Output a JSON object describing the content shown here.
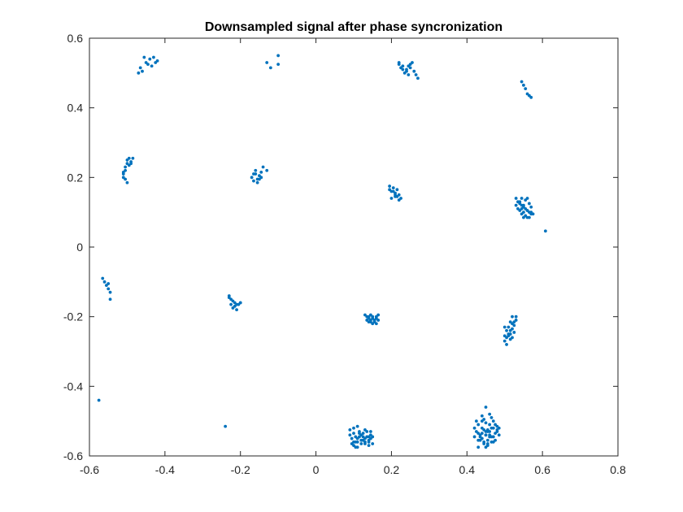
{
  "chart_data": {
    "type": "scatter",
    "title": "Downsampled signal after phase syncronization",
    "xlabel": "",
    "ylabel": "",
    "xlim": [
      -0.6,
      0.8
    ],
    "ylim": [
      -0.6,
      0.6
    ],
    "xticks": [
      -0.6,
      -0.4,
      -0.2,
      0,
      0.2,
      0.4,
      0.6,
      0.8
    ],
    "xtick_labels": [
      "-0.6",
      "-0.4",
      "-0.2",
      "0",
      "0.2",
      "0.4",
      "0.6",
      "0.8"
    ],
    "yticks": [
      -0.6,
      -0.4,
      -0.2,
      0,
      0.2,
      0.4,
      0.6
    ],
    "ytick_labels": [
      "-0.6",
      "-0.4",
      "-0.2",
      "0",
      "0.2",
      "0.4",
      "0.6"
    ],
    "grid": false,
    "legend": "none",
    "marker_color": "#0072BD",
    "series": [
      {
        "x": [
          -0.47,
          -0.455,
          -0.44,
          -0.425,
          -0.465,
          -0.45,
          -0.435,
          -0.42,
          -0.46,
          -0.445,
          -0.43,
          -0.13,
          -0.12,
          -0.1,
          -0.1,
          0.22,
          0.23,
          0.24,
          0.25,
          0.26,
          0.225,
          0.235,
          0.245,
          0.255,
          0.265,
          0.23,
          0.24,
          0.25,
          0.27,
          0.22,
          0.245,
          0.545,
          0.55,
          0.555,
          0.56,
          0.565,
          0.57,
          -0.51,
          -0.505,
          -0.5,
          -0.495,
          -0.49,
          -0.51,
          -0.505,
          -0.5,
          -0.495,
          -0.485,
          -0.51,
          -0.505,
          -0.5,
          -0.49,
          -0.17,
          -0.165,
          -0.16,
          -0.155,
          -0.15,
          -0.145,
          -0.14,
          -0.165,
          -0.155,
          -0.145,
          -0.16,
          -0.15,
          -0.13,
          0.195,
          0.2,
          0.205,
          0.21,
          0.215,
          0.22,
          0.2,
          0.21,
          0.22,
          0.205,
          0.215,
          0.225,
          0.195,
          0.21,
          0.53,
          0.535,
          0.54,
          0.545,
          0.55,
          0.555,
          0.56,
          0.565,
          0.57,
          0.54,
          0.545,
          0.55,
          0.555,
          0.56,
          0.565,
          0.535,
          0.545,
          0.555,
          0.565,
          0.57,
          0.545,
          0.55,
          0.56,
          0.575,
          0.53,
          0.54,
          0.55,
          0.56,
          0.57,
          0.608,
          -0.565,
          -0.56,
          -0.555,
          -0.55,
          -0.545,
          -0.545,
          -0.55,
          -0.23,
          -0.225,
          -0.22,
          -0.215,
          -0.21,
          -0.2,
          -0.225,
          -0.215,
          -0.205,
          -0.22,
          -0.21,
          -0.23,
          -0.2,
          0.13,
          0.135,
          0.14,
          0.145,
          0.15,
          0.155,
          0.16,
          0.165,
          0.14,
          0.15,
          0.16,
          0.145,
          0.155,
          0.135,
          0.165,
          0.15,
          0.14,
          0.16,
          0.155,
          0.145,
          0.5,
          0.505,
          0.51,
          0.515,
          0.52,
          0.525,
          0.53,
          0.505,
          0.515,
          0.525,
          0.51,
          0.52,
          0.5,
          0.515,
          0.53,
          0.505,
          0.52,
          0.51,
          0.525,
          0.5,
          0.515,
          0.52,
          -0.575,
          -0.24,
          0.09,
          0.095,
          0.1,
          0.105,
          0.11,
          0.115,
          0.12,
          0.125,
          0.13,
          0.135,
          0.14,
          0.145,
          0.15,
          0.1,
          0.11,
          0.12,
          0.13,
          0.14,
          0.1,
          0.12,
          0.14,
          0.105,
          0.115,
          0.125,
          0.135,
          0.145,
          0.095,
          0.11,
          0.13,
          0.15,
          0.1,
          0.12,
          0.14,
          0.09,
          0.105,
          0.125,
          0.145,
          0.11,
          0.13,
          0.115,
          0.42,
          0.425,
          0.43,
          0.435,
          0.44,
          0.445,
          0.45,
          0.455,
          0.46,
          0.465,
          0.47,
          0.475,
          0.48,
          0.485,
          0.43,
          0.44,
          0.45,
          0.46,
          0.47,
          0.48,
          0.435,
          0.445,
          0.455,
          0.465,
          0.475,
          0.42,
          0.44,
          0.46,
          0.48,
          0.43,
          0.45,
          0.47,
          0.425,
          0.445,
          0.465,
          0.485,
          0.44,
          0.46,
          0.45,
          0.455,
          0.435,
          0.465,
          0.475,
          0.445,
          0.455,
          0.43,
          0.47,
          0.45,
          0.46,
          0.44,
          0.455,
          0.45
        ],
        "y": [
          0.5,
          0.545,
          0.54,
          0.53,
          0.515,
          0.53,
          0.52,
          0.535,
          0.505,
          0.525,
          0.545,
          0.53,
          0.515,
          0.55,
          0.525,
          0.525,
          0.52,
          0.51,
          0.525,
          0.505,
          0.515,
          0.5,
          0.52,
          0.53,
          0.495,
          0.51,
          0.505,
          0.515,
          0.485,
          0.53,
          0.495,
          0.475,
          0.465,
          0.455,
          0.44,
          0.435,
          0.43,
          0.21,
          0.23,
          0.25,
          0.255,
          0.245,
          0.2,
          0.22,
          0.24,
          0.235,
          0.255,
          0.215,
          0.195,
          0.185,
          0.24,
          0.2,
          0.21,
          0.22,
          0.195,
          0.205,
          0.215,
          0.23,
          0.19,
          0.185,
          0.2,
          0.21,
          0.195,
          0.22,
          0.175,
          0.16,
          0.17,
          0.155,
          0.165,
          0.15,
          0.14,
          0.145,
          0.135,
          0.16,
          0.145,
          0.14,
          0.165,
          0.15,
          0.14,
          0.13,
          0.125,
          0.12,
          0.115,
          0.11,
          0.105,
          0.1,
          0.095,
          0.13,
          0.11,
          0.1,
          0.09,
          0.085,
          0.085,
          0.11,
          0.14,
          0.135,
          0.125,
          0.115,
          0.095,
          0.12,
          0.14,
          0.095,
          0.12,
          0.105,
          0.085,
          0.105,
          0.1,
          0.046,
          -0.09,
          -0.1,
          -0.11,
          -0.12,
          -0.13,
          -0.15,
          -0.105,
          -0.14,
          -0.15,
          -0.155,
          -0.16,
          -0.165,
          -0.16,
          -0.165,
          -0.17,
          -0.165,
          -0.175,
          -0.18,
          -0.145,
          -0.16,
          -0.195,
          -0.2,
          -0.205,
          -0.21,
          -0.2,
          -0.215,
          -0.205,
          -0.21,
          -0.215,
          -0.22,
          -0.2,
          -0.195,
          -0.215,
          -0.21,
          -0.195,
          -0.205,
          -0.2,
          -0.22,
          -0.21,
          -0.215,
          -0.27,
          -0.26,
          -0.25,
          -0.24,
          -0.235,
          -0.225,
          -0.21,
          -0.28,
          -0.265,
          -0.245,
          -0.255,
          -0.22,
          -0.23,
          -0.215,
          -0.2,
          -0.24,
          -0.2,
          -0.23,
          -0.215,
          -0.255,
          -0.25,
          -0.26,
          -0.44,
          -0.515,
          -0.54,
          -0.55,
          -0.56,
          -0.545,
          -0.575,
          -0.53,
          -0.565,
          -0.545,
          -0.55,
          -0.53,
          -0.555,
          -0.54,
          -0.565,
          -0.535,
          -0.55,
          -0.555,
          -0.525,
          -0.545,
          -0.57,
          -0.54,
          -0.56,
          -0.575,
          -0.535,
          -0.555,
          -0.545,
          -0.53,
          -0.565,
          -0.56,
          -0.56,
          -0.545,
          -0.52,
          -0.555,
          -0.57,
          -0.525,
          -0.56,
          -0.535,
          -0.55,
          -0.515,
          -0.565,
          -0.545,
          -0.52,
          -0.53,
          -0.535,
          -0.545,
          -0.55,
          -0.525,
          -0.54,
          -0.555,
          -0.53,
          -0.545,
          -0.52,
          -0.535,
          -0.525,
          -0.54,
          -0.51,
          -0.5,
          -0.505,
          -0.51,
          -0.5,
          -0.515,
          -0.555,
          -0.565,
          -0.57,
          -0.56,
          -0.555,
          -0.545,
          -0.535,
          -0.545,
          -0.53,
          -0.575,
          -0.575,
          -0.56,
          -0.5,
          -0.495,
          -0.49,
          -0.52,
          -0.485,
          -0.48,
          -0.53,
          -0.565,
          -0.54,
          -0.52,
          -0.51,
          -0.56,
          -0.53,
          -0.555,
          -0.545,
          -0.54,
          -0.54,
          -0.52,
          -0.525,
          -0.46
        ]
      }
    ]
  }
}
